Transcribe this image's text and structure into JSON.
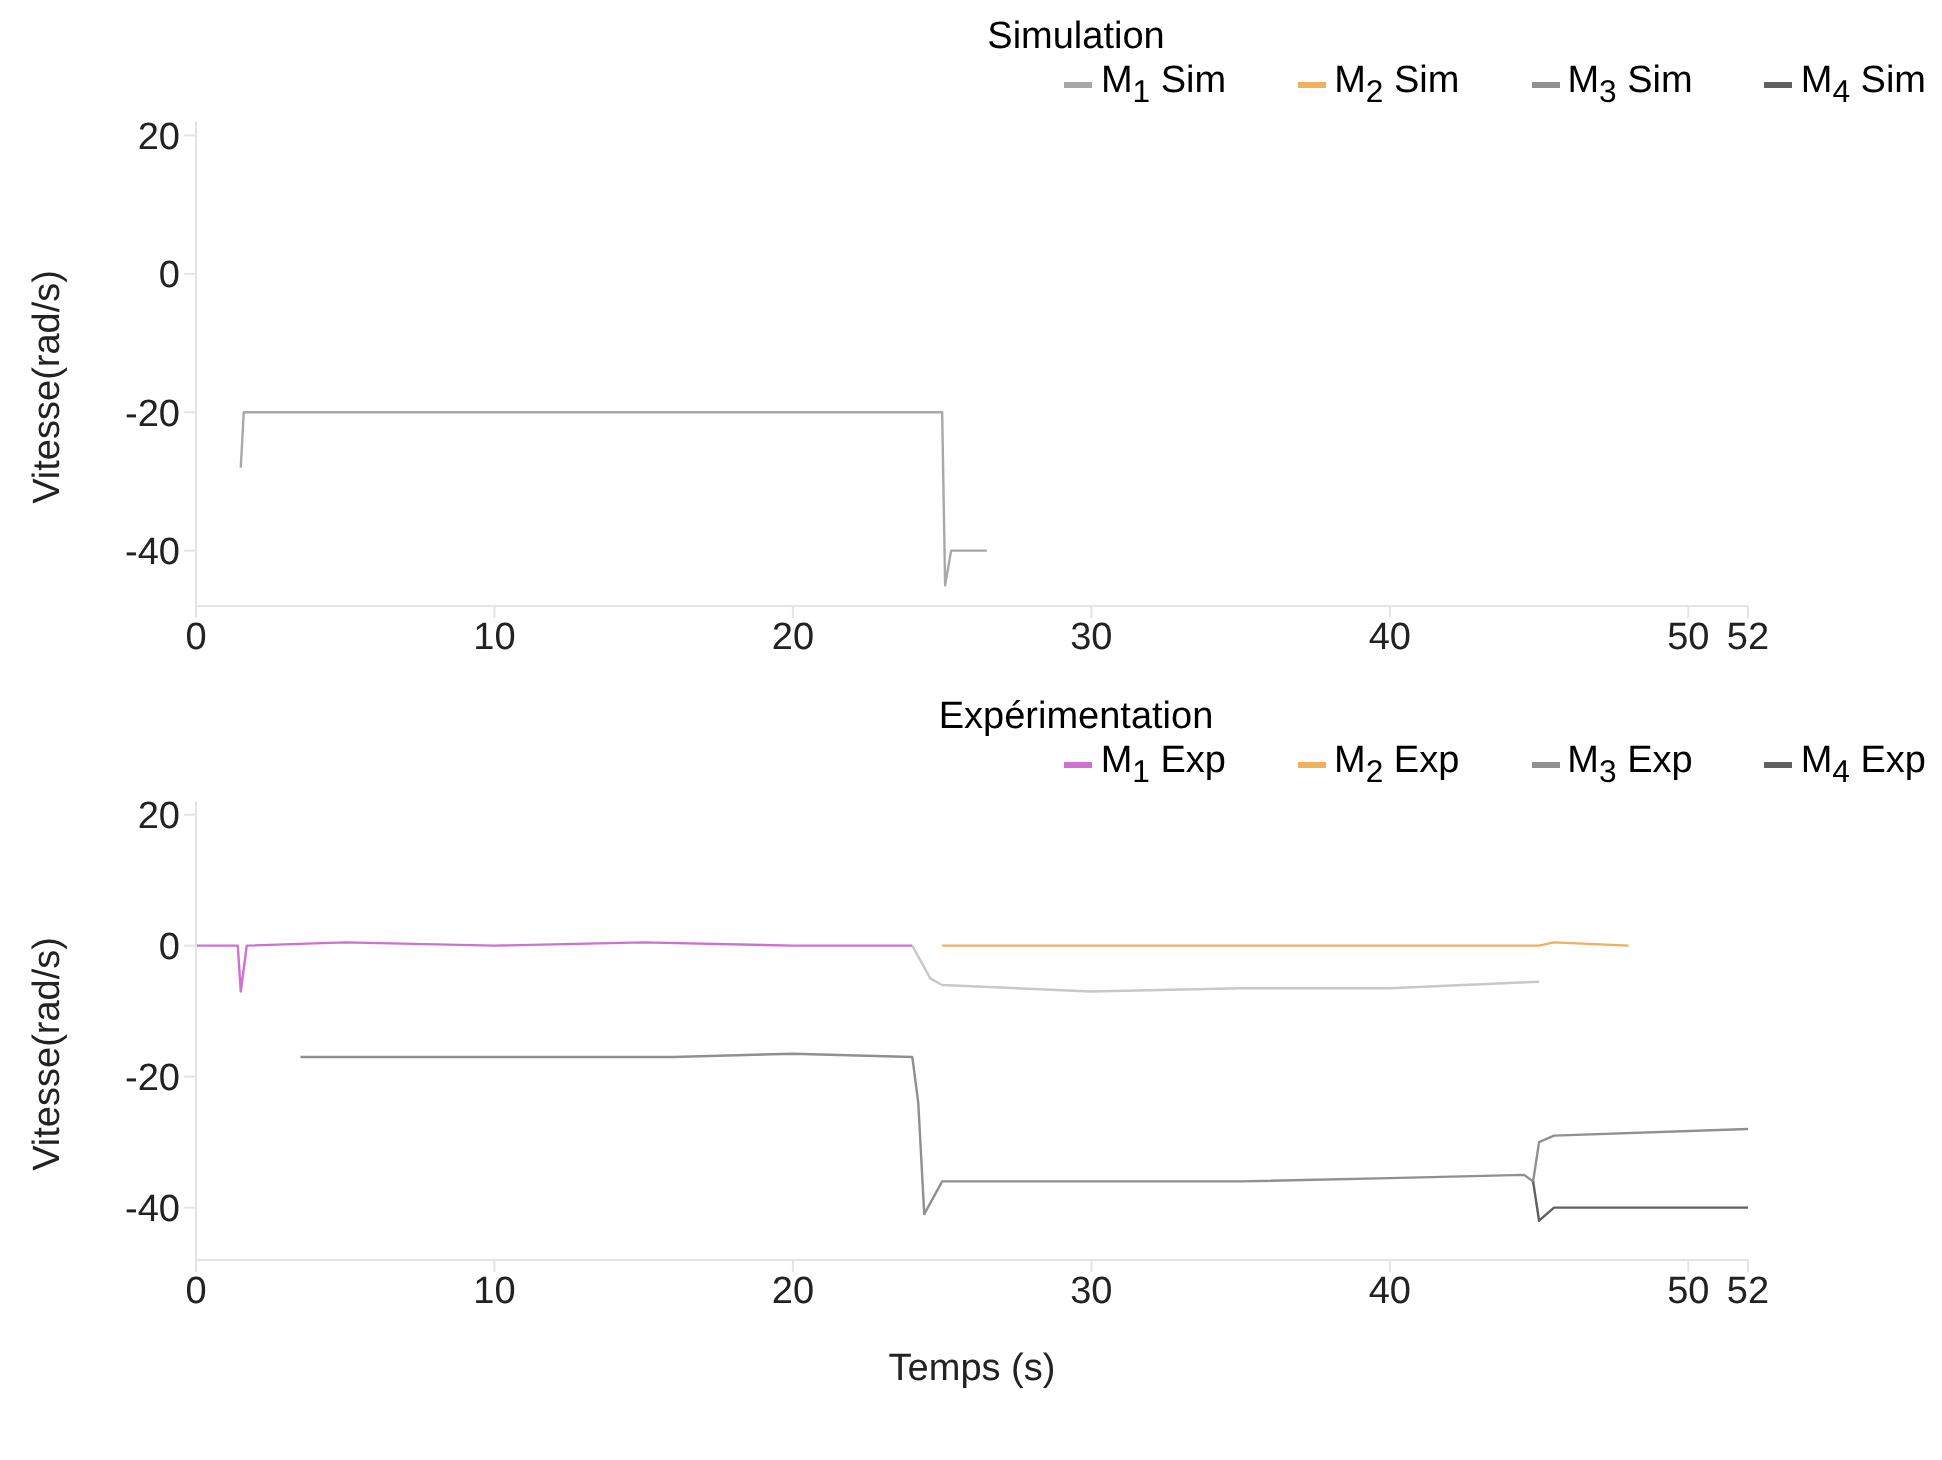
{
  "chart_data": [
    {
      "type": "line",
      "title": "Simulation",
      "ylabel": "Vitesse(rad/s)",
      "xlim": [
        0,
        52
      ],
      "xticks": [
        0,
        10,
        20,
        30,
        40,
        50,
        52
      ],
      "ylim": [
        -48,
        22
      ],
      "yticks": [
        -40,
        -20,
        0,
        20
      ],
      "grid": false,
      "legend": "top right",
      "marker": "none",
      "line_style": "solid",
      "series": [
        {
          "name": "M$_{1}$ Sim",
          "color": "#a8a8a8",
          "x": [
            1.5,
            1.6,
            25,
            25.1,
            25.3,
            26.5
          ],
          "values": [
            -28,
            -20,
            -20,
            -45,
            -40,
            -40
          ]
        },
        {
          "name": "M$_{2}$ Sim",
          "color": "#f0b060"
        },
        {
          "name": "M$_{3}$ Sim",
          "color": "#909090"
        },
        {
          "name": "M$_{4}$ Sim",
          "color": "#606060"
        }
      ]
    },
    {
      "type": "line",
      "title": "Expérimentation",
      "xlabel": "Temps (s)",
      "ylabel": "Vitesse(rad/s)",
      "xlim": [
        0,
        52
      ],
      "xticks": [
        0,
        10,
        20,
        30,
        40,
        50,
        52
      ],
      "ylim": [
        -48,
        22
      ],
      "yticks": [
        -40,
        -20,
        0,
        20
      ],
      "grid": false,
      "legend": "top right",
      "marker": "none",
      "line_style": "solid",
      "series": [
        {
          "name": "M$_{1}$ Exp",
          "color": "#d070d0",
          "x": [
            0,
            1.4,
            1.5,
            1.7,
            5,
            10,
            15,
            20,
            24
          ],
          "values": [
            0,
            0,
            -7,
            0,
            0.5,
            0,
            0.5,
            0,
            0
          ]
        },
        {
          "name": "M$_{2}$ Exp",
          "color": "#f0b060",
          "x": [
            25,
            35,
            45,
            45.5,
            48
          ],
          "values": [
            0,
            0,
            0,
            0.5,
            0
          ]
        },
        {
          "name": "M$_{3}$ Exp",
          "color": "#909090",
          "x": [
            3.5,
            10,
            16,
            20,
            24,
            24.2,
            24.4,
            25,
            30,
            35,
            40,
            44.5,
            44.8,
            45,
            45.5,
            52
          ],
          "values": [
            -17,
            -17,
            -17,
            -16.5,
            -17,
            -24,
            -41,
            -36,
            -36,
            -36,
            -35.5,
            -35,
            -36,
            -30,
            -29,
            -28
          ]
        },
        {
          "name": "M$_{4}$ Exp",
          "color": "#606060",
          "x": [
            44.8,
            45,
            45.5,
            52
          ],
          "values": [
            -36,
            -42,
            -40,
            -40
          ]
        },
        {
          "color": "#c8c8c8",
          "x": [
            24,
            24.6,
            25,
            30,
            35,
            40,
            45
          ],
          "values": [
            0,
            -5,
            -6,
            -7,
            -6.5,
            -6.5,
            -5.5
          ]
        }
      ]
    }
  ]
}
